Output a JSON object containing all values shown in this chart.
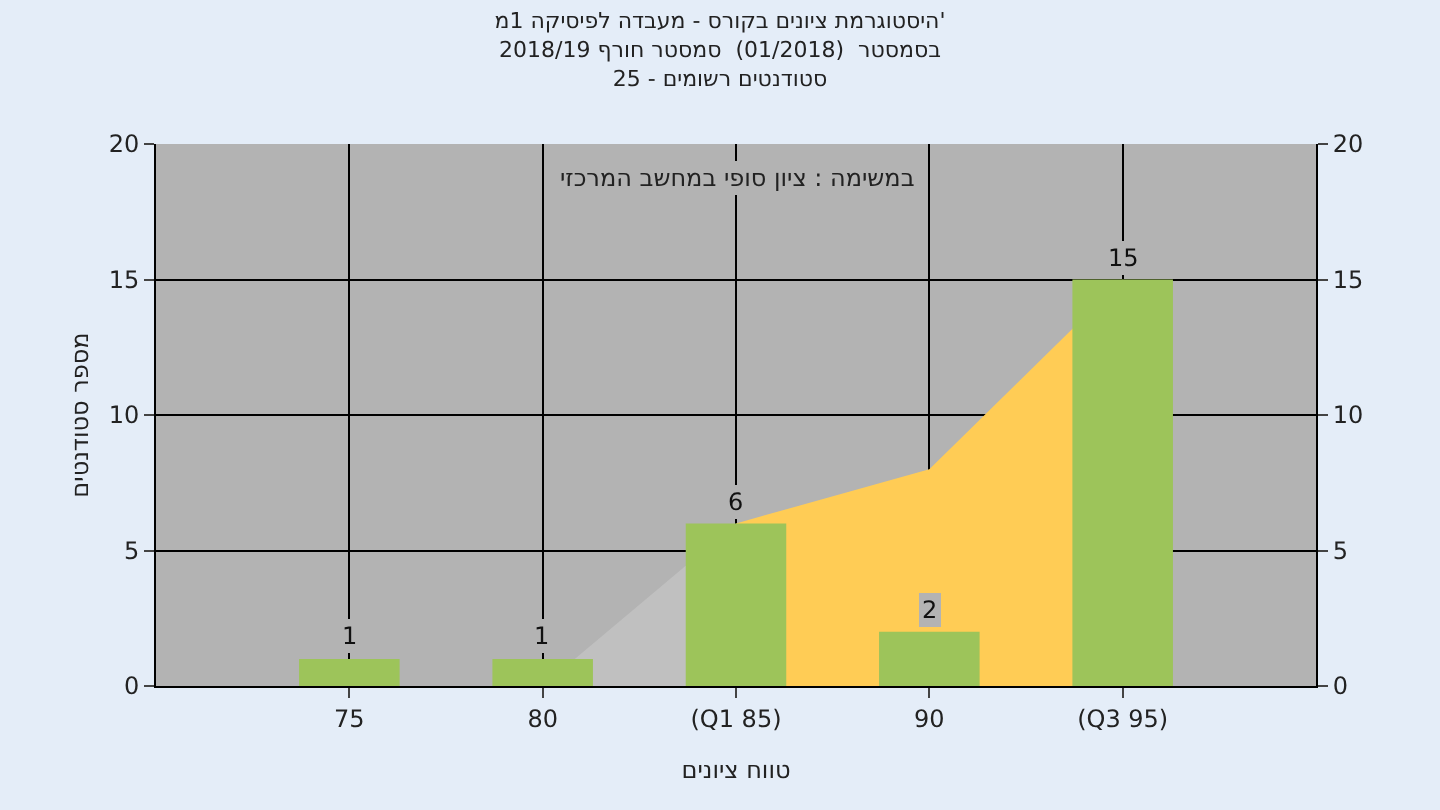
{
  "chart_data": {
    "type": "bar",
    "title": "היסטוגרמת ציונים בקורס - מעבדה לפיסיקה 1מ'",
    "subtitle": "בסמסטר  (01/2018)  סמסטר חורף 2018/19\nסטודנטים רשומים - 25",
    "xlabel": "טווח ציונים",
    "ylabel": "מספר סטודנטים",
    "annotations": [
      "במשימה : ציון סופי במחשב המרכזי"
    ],
    "categories": [
      "75",
      "80",
      "(Q1 85)",
      "90",
      "(Q3 95)"
    ],
    "series": [
      {
        "type": "area",
        "color": "#c0c0c0",
        "values": [
          0,
          0,
          6,
          null,
          null
        ]
      },
      {
        "type": "area",
        "color": "#ffcc55",
        "values": [
          null,
          null,
          6,
          8,
          15
        ]
      },
      {
        "type": "bar",
        "color": "#9dc45a",
        "values": [
          1,
          1,
          6,
          2,
          15
        ],
        "value_labels": [
          "1",
          "1",
          "6",
          "2",
          "15"
        ]
      }
    ],
    "ylim": [
      0,
      20
    ],
    "yticks": [
      0,
      5,
      10,
      15,
      20
    ],
    "y2lim": [
      0,
      20
    ],
    "y2ticks": [
      0,
      5,
      10,
      15,
      20
    ],
    "grid": true
  }
}
